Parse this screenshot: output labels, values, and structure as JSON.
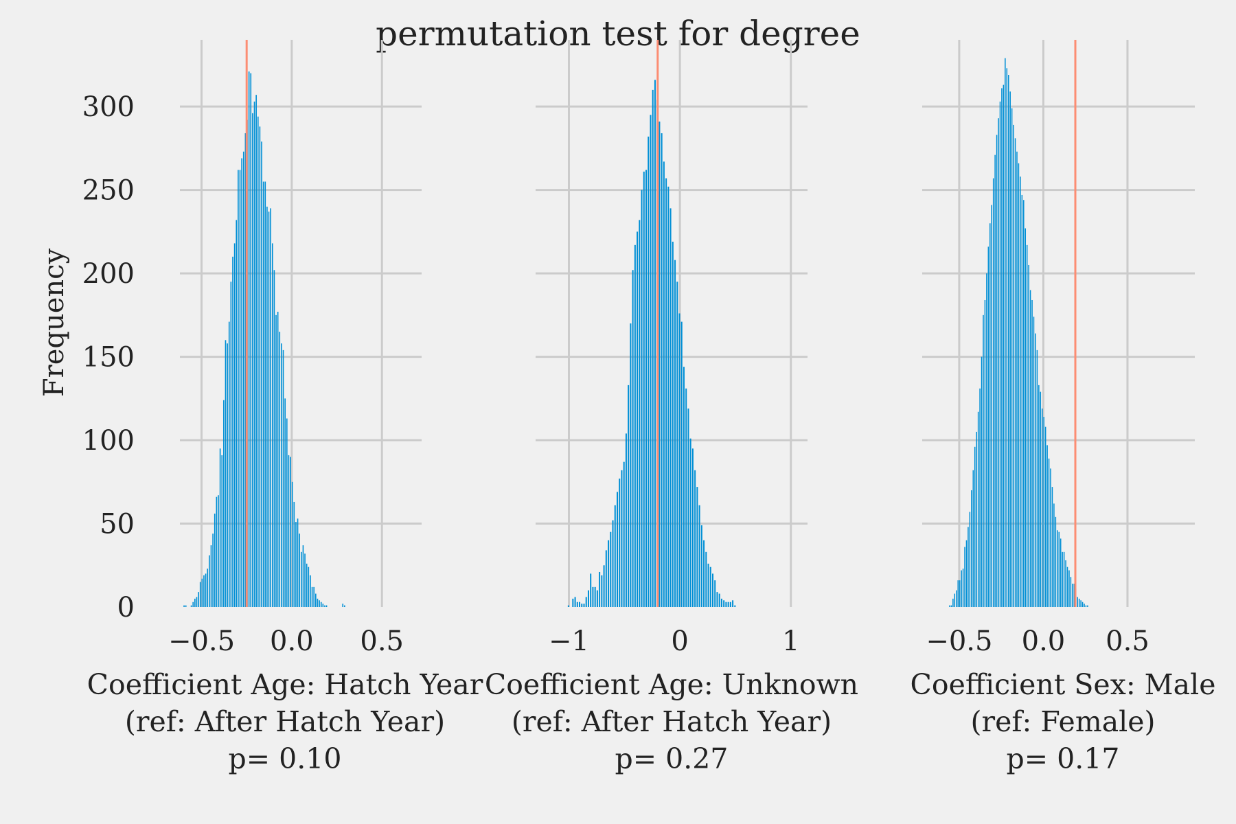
{
  "title": "permutation test for degree",
  "colors": {
    "background": "#f0f0f0",
    "grid": "#cbcbcb",
    "bar": "#008fd5",
    "observed_line": "#fc8d73"
  },
  "chart_data": [
    {
      "type": "bar",
      "subtype": "histogram",
      "xlabel_lines": [
        "Coefficient Age: Hatch Year",
        "(ref: After Hatch Year)",
        "p= 0.10"
      ],
      "ylabel": "Frequency",
      "xlim": [
        -0.62,
        0.72
      ],
      "ylim": [
        0,
        340
      ],
      "xticks": [
        -0.5,
        0.0,
        0.5
      ],
      "xtick_labels": [
        "−0.5",
        "0.0",
        "0.5"
      ],
      "yticks": [
        0,
        50,
        100,
        150,
        200,
        250,
        300
      ],
      "ytick_labels": [
        "0",
        "50",
        "100",
        "150",
        "200",
        "250",
        "300"
      ],
      "grid": true,
      "observed_value": -0.25,
      "bins": {
        "start": -0.6,
        "width": 0.01
      },
      "values": [
        1,
        1,
        0,
        0,
        1,
        3,
        5,
        6,
        9,
        15,
        17,
        19,
        20,
        23,
        31,
        37,
        44,
        56,
        66,
        67,
        95,
        91,
        124,
        160,
        158,
        171,
        195,
        210,
        218,
        232,
        262,
        262,
        269,
        273,
        284,
        292,
        321,
        320,
        296,
        303,
        307,
        294,
        288,
        279,
        255,
        255,
        240,
        237,
        239,
        218,
        202,
        175,
        177,
        165,
        158,
        154,
        125,
        113,
        91,
        90,
        75,
        63,
        51,
        53,
        44,
        33,
        37,
        32,
        26,
        24,
        19,
        12,
        12,
        8,
        5,
        4,
        3,
        2,
        1,
        1,
        0,
        0,
        0,
        0,
        0,
        0,
        0,
        0,
        2,
        1
      ]
    },
    {
      "type": "bar",
      "subtype": "histogram",
      "xlabel_lines": [
        "Coefficient Age: Unknown",
        "(ref: After Hatch Year)",
        "p= 0.27"
      ],
      "ylabel": "",
      "xlim": [
        -1.3,
        1.15
      ],
      "ylim": [
        0,
        340
      ],
      "xticks": [
        -1,
        0,
        1
      ],
      "xtick_labels": [
        "−1",
        "0",
        "1"
      ],
      "yticks": [
        0,
        50,
        100,
        150,
        200,
        250,
        300
      ],
      "ytick_labels": [
        "",
        "",
        "",
        "",
        "",
        "",
        ""
      ],
      "grid": true,
      "observed_value": -0.2,
      "bins": {
        "start": -1.25,
        "width": 0.02
      },
      "values": [
        0,
        0,
        0,
        0,
        0,
        0,
        0,
        0,
        0,
        0,
        0,
        0,
        1,
        0,
        5,
        6,
        3,
        3,
        2,
        2,
        6,
        10,
        20,
        12,
        12,
        10,
        21,
        19,
        25,
        34,
        40,
        45,
        52,
        61,
        69,
        77,
        82,
        87,
        104,
        133,
        170,
        202,
        217,
        225,
        232,
        250,
        261,
        262,
        282,
        295,
        310,
        316,
        304,
        291,
        284,
        267,
        257,
        252,
        239,
        219,
        208,
        195,
        176,
        171,
        144,
        131,
        119,
        101,
        95,
        82,
        72,
        61,
        49,
        40,
        33,
        26,
        24,
        20,
        16,
        9,
        8,
        5,
        4,
        3,
        3,
        3,
        4,
        1,
        0,
        0,
        0
      ]
    },
    {
      "type": "bar",
      "subtype": "histogram",
      "xlabel_lines": [
        "Coefficient Sex: Male",
        "(ref: Female)",
        "p= 0.17"
      ],
      "ylabel": "",
      "xlim": [
        -0.72,
        0.9
      ],
      "ylim": [
        0,
        340
      ],
      "xticks": [
        -0.5,
        0.0,
        0.5
      ],
      "xtick_labels": [
        "−0.5",
        "0.0",
        "0.5"
      ],
      "yticks": [
        0,
        50,
        100,
        150,
        200,
        250,
        300
      ],
      "ytick_labels": [
        "",
        "",
        "",
        "",
        "",
        "",
        ""
      ],
      "grid": true,
      "observed_value": 0.19,
      "bins": {
        "start": -0.58,
        "width": 0.01
      },
      "values": [
        0,
        0,
        1,
        1,
        5,
        8,
        10,
        16,
        16,
        22,
        23,
        36,
        40,
        48,
        57,
        70,
        82,
        96,
        105,
        117,
        131,
        150,
        175,
        184,
        200,
        216,
        230,
        241,
        257,
        271,
        283,
        293,
        303,
        311,
        313,
        329,
        323,
        319,
        309,
        299,
        289,
        281,
        273,
        266,
        258,
        247,
        244,
        227,
        217,
        205,
        190,
        184,
        174,
        164,
        154,
        133,
        129,
        119,
        114,
        108,
        97,
        89,
        83,
        72,
        62,
        54,
        46,
        45,
        41,
        33,
        33,
        28,
        24,
        22,
        18,
        14,
        14,
        11,
        6,
        5,
        4,
        3,
        2,
        1,
        1,
        0,
        0,
        0,
        0,
        0,
        0,
        0
      ]
    }
  ]
}
